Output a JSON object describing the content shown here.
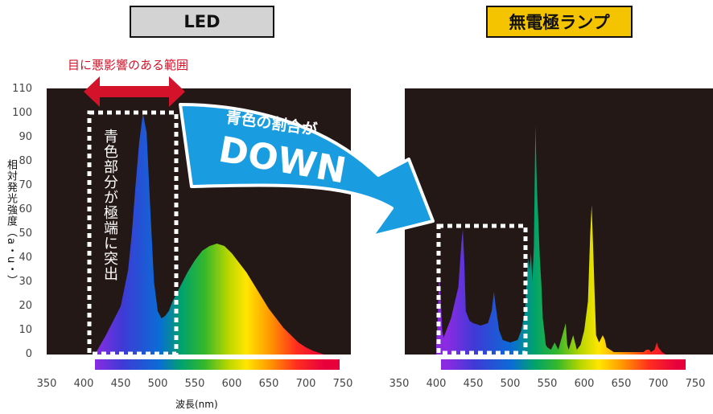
{
  "titles": {
    "led": "LED",
    "lamp": "無電極ランプ"
  },
  "y_axis": {
    "label": "相対発光強度（a・u・）",
    "ticks": [
      "110",
      "100",
      "90",
      "80",
      "70",
      "60",
      "50",
      "40",
      "30",
      "20",
      "10",
      "0"
    ]
  },
  "x_axis": {
    "label": "波長(nm)",
    "ticks": [
      "350",
      "400",
      "450",
      "500",
      "550",
      "600",
      "650",
      "700",
      "750"
    ]
  },
  "annotations": {
    "harm_range": "目に悪影響のある範囲",
    "blue_peak": "青色部分が極端に突出",
    "arrow_top": "青色の割合が",
    "arrow_main": "DOWN"
  },
  "colors": {
    "harm_red": "#d4122a",
    "arrow_blue": "#1a9de0",
    "lamp_title_bg": "#f5c400",
    "led_title_bg": "#d3d3d3",
    "plot_bg": "#231815"
  },
  "chart_data": [
    {
      "type": "area",
      "title": "LED",
      "xlabel": "波長(nm)",
      "ylabel": "相対発光強度（a・u・）",
      "xlim": [
        350,
        750
      ],
      "ylim": [
        0,
        110
      ],
      "x": [
        415,
        430,
        440,
        450,
        460,
        465,
        470,
        475,
        480,
        485,
        490,
        495,
        500,
        505,
        510,
        515,
        520,
        530,
        540,
        550,
        560,
        570,
        580,
        590,
        600,
        610,
        620,
        630,
        640,
        650,
        660,
        670,
        680,
        690,
        700,
        710,
        720,
        725
      ],
      "series": [
        {
          "values": [
            0,
            8,
            14,
            20,
            35,
            50,
            70,
            88,
            100,
            92,
            60,
            30,
            18,
            15,
            16,
            18,
            22,
            28,
            34,
            39,
            43,
            45,
            46,
            45,
            42,
            38,
            34,
            29,
            24,
            19,
            15,
            11,
            8,
            5,
            3,
            1.5,
            0.5,
            0
          ]
        }
      ]
    },
    {
      "type": "area",
      "title": "無電極ランプ",
      "xlabel": "波長(nm)",
      "xlim": [
        350,
        750
      ],
      "ylim": [
        0,
        110
      ],
      "x": [
        400,
        402,
        404,
        406,
        408,
        410,
        420,
        430,
        434,
        436,
        438,
        440,
        445,
        450,
        460,
        470,
        475,
        478,
        480,
        485,
        490,
        500,
        510,
        515,
        520,
        524,
        526,
        528,
        530,
        532,
        534,
        536,
        538,
        540,
        542,
        544,
        546,
        548,
        550,
        555,
        560,
        565,
        575,
        577,
        579,
        585,
        590,
        595,
        600,
        605,
        608,
        610,
        612,
        614,
        616,
        620,
        625,
        628,
        630,
        635,
        640,
        650,
        660,
        670,
        680,
        684,
        688,
        690,
        695,
        698,
        700,
        705,
        710
      ],
      "series": [
        {
          "values": [
            5,
            14,
            34,
            25,
            10,
            7,
            15,
            28,
            46,
            52,
            38,
            18,
            14,
            13,
            12,
            13,
            18,
            26,
            21,
            10,
            6,
            5,
            6,
            10,
            18,
            40,
            35,
            42,
            30,
            45,
            95,
            70,
            55,
            40,
            30,
            15,
            10,
            4,
            3,
            2,
            5,
            2,
            13,
            4,
            2,
            8,
            2,
            4,
            10,
            22,
            50,
            62,
            45,
            25,
            8,
            5,
            8,
            6,
            3,
            2,
            1,
            1,
            1,
            1,
            1,
            2,
            2,
            1,
            2,
            5,
            3,
            1,
            0
          ]
        }
      ]
    }
  ]
}
